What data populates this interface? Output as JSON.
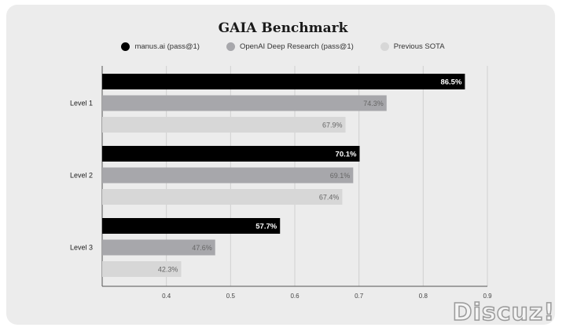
{
  "chart_data": {
    "type": "bar",
    "orientation": "horizontal",
    "title": "GAIA Benchmark",
    "categories": [
      "Level 1",
      "Level 2",
      "Level 3"
    ],
    "series": [
      {
        "name": "manus.ai (pass@1)",
        "color": "#000000",
        "values": [
          0.865,
          0.701,
          0.577
        ],
        "labels": [
          "86.5%",
          "70.1%",
          "57.7%"
        ]
      },
      {
        "name": "OpenAI Deep Research (pass@1)",
        "color": "#a7a7ab",
        "values": [
          0.743,
          0.691,
          0.476
        ],
        "labels": [
          "74.3%",
          "69.1%",
          "47.6%"
        ]
      },
      {
        "name": "Previous SOTA",
        "color": "#d7d7d7",
        "values": [
          0.679,
          0.674,
          0.423
        ],
        "labels": [
          "67.9%",
          "67.4%",
          "42.3%"
        ]
      }
    ],
    "xlim": [
      0.3,
      0.9
    ],
    "xticks": [
      "0.4",
      "0.5",
      "0.6",
      "0.7",
      "0.8",
      "0.9"
    ],
    "grid": true,
    "legend_position": "top-center"
  },
  "watermark": "Discuz!"
}
